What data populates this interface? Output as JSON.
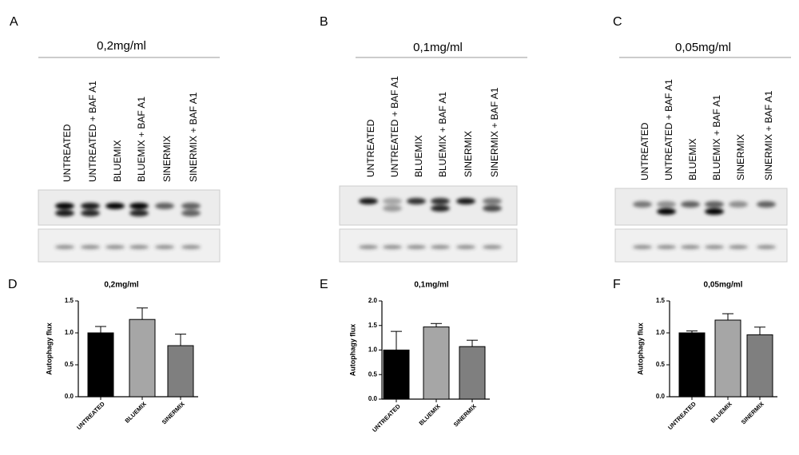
{
  "blots": [
    {
      "letter": "A",
      "title": "0,2mg/ml",
      "lanes": [
        "UNTREATED",
        "UNTREATED + BAF A1",
        "BLUEMIX",
        "BLUEMIX + BAF A1",
        "SINERMIX",
        "SINERMIX + BAF A1"
      ]
    },
    {
      "letter": "B",
      "title": "0,1mg/ml",
      "lanes": [
        "UNTREATED",
        "UNTREATED + BAF A1",
        "BLUEMIX",
        "BLUEMIX + BAF A1",
        "SINERMIX",
        "SINERMIX + BAF A1"
      ]
    },
    {
      "letter": "C",
      "title": "0,05mg/ml",
      "lanes": [
        "UNTREATED",
        "UNTREATED + BAF A1",
        "BLUEMIX",
        "BLUEMIX + BAF A1",
        "SINERMIX",
        "SINERMIX + BAF A1"
      ]
    }
  ],
  "chart_data": [
    {
      "type": "bar",
      "letter": "D",
      "title": "0,2mg/ml",
      "y_label": "Autophagy flux",
      "categories": [
        "UNTREATED",
        "BLUEMIX",
        "SINERMIX"
      ],
      "values": [
        1.0,
        1.21,
        0.8
      ],
      "errors": [
        0.1,
        0.18,
        0.18
      ],
      "colors": [
        "#000000",
        "#a6a6a6",
        "#7f7f7f"
      ],
      "ylim": [
        0,
        1.5
      ],
      "yticks": [
        {
          "value": 0,
          "label": "0.0"
        },
        0.5,
        {
          "value": 1,
          "label": "1.0"
        },
        1.5
      ]
    },
    {
      "type": "bar",
      "letter": "E",
      "title": "0,1mg/ml",
      "y_label": "Autophagy flux",
      "categories": [
        "UNTREATED",
        "BLUEMIX",
        "SINERMIX"
      ],
      "values": [
        1.0,
        1.47,
        1.07
      ],
      "errors": [
        0.38,
        0.07,
        0.13
      ],
      "colors": [
        "#000000",
        "#a6a6a6",
        "#7f7f7f"
      ],
      "ylim": [
        0,
        2
      ],
      "yticks": [
        {
          "value": 0,
          "label": "0.0"
        },
        0.5,
        {
          "value": 1,
          "label": "1.0"
        },
        1.5,
        {
          "value": 2,
          "label": "2.0"
        }
      ]
    },
    {
      "type": "bar",
      "letter": "F",
      "title": "0,05mg/ml",
      "y_label": "Autophagy flux",
      "categories": [
        "UNTREATED",
        "BLUEMIX",
        "SINERMIX"
      ],
      "values": [
        1.0,
        1.2,
        0.97
      ],
      "errors": [
        0.03,
        0.1,
        0.12
      ],
      "colors": [
        "#000000",
        "#a6a6a6",
        "#7f7f7f"
      ],
      "ylim": [
        0,
        1.5
      ],
      "yticks": [
        {
          "value": 0,
          "label": "0.0"
        },
        0.5,
        {
          "value": 1,
          "label": "1.0"
        },
        1.5
      ]
    }
  ]
}
